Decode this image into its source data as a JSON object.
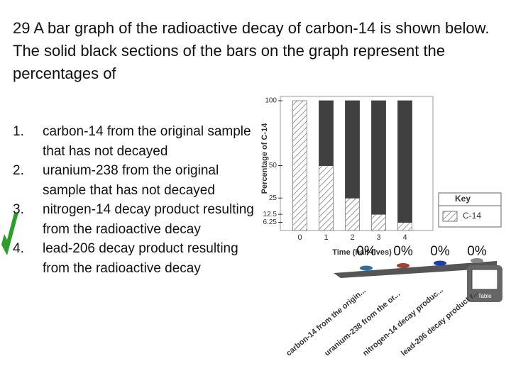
{
  "question": "29 A bar graph of the radioactive decay of carbon-14 is shown below. The solid black sections of the bars on the graph represent the percentages of",
  "options": [
    {
      "label": "1.",
      "text": "carbon-14 from the original sample that has not decayed"
    },
    {
      "label": "2.",
      "text": "uranium-238 from the original sample that has not decayed"
    },
    {
      "label": "3.",
      "text": "nitrogen-14 decay product resulting from the radioactive decay"
    },
    {
      "label": "4.",
      "text": "lead-206 decay product resulting from the radioactive decay"
    }
  ],
  "table_icon": "Table",
  "chart_data": [
    {
      "type": "stacked-bar",
      "y_label": "Percentage of C-14",
      "x_label": "Time (half-lives)",
      "categories": [
        "0",
        "1",
        "2",
        "3",
        "4"
      ],
      "series": [
        {
          "name": "C-14",
          "color": "#777777",
          "pattern": "hatch",
          "values": [
            100,
            50,
            25,
            12.5,
            6.25
          ]
        },
        {
          "color": "#404040",
          "values": [
            0,
            50,
            75,
            87.5,
            93.75
          ]
        }
      ],
      "ylim": [
        0,
        100
      ],
      "yticks": [
        100,
        50,
        25,
        12.5,
        6.25
      ],
      "legend_title": "Key",
      "legend": "lower-right"
    },
    {
      "type": "bar",
      "categories": [
        "carbon-14 from the origin...",
        "uranium-238 from the or...",
        "nitrogen-14 decay produc...",
        "lead-206 decay product r..."
      ],
      "values": [
        0,
        0,
        0,
        0
      ],
      "value_labels": [
        "0%",
        "0%",
        "0%",
        "0%"
      ],
      "colors": [
        "#2e6fa0",
        "#a04030",
        "#1a3fb0",
        "#888888"
      ]
    }
  ]
}
